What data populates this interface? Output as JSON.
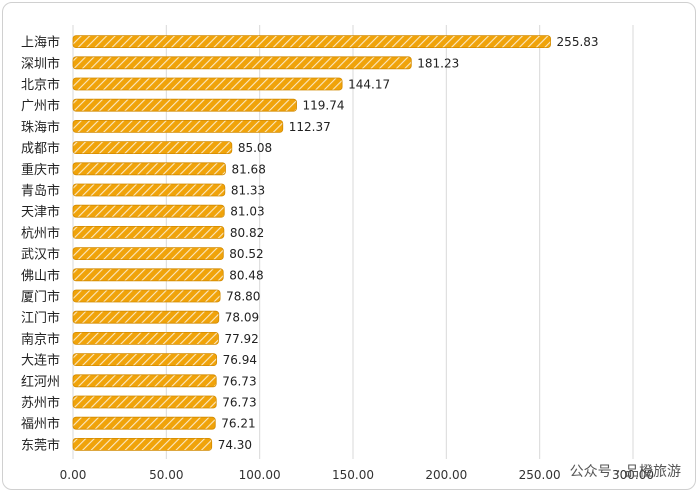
{
  "chart_data": {
    "type": "bar",
    "orientation": "horizontal",
    "categories": [
      "上海市",
      "深圳市",
      "北京市",
      "广州市",
      "珠海市",
      "成都市",
      "重庆市",
      "青岛市",
      "天津市",
      "杭州市",
      "武汉市",
      "佛山市",
      "厦门市",
      "江门市",
      "南京市",
      "大连市",
      "红河州",
      "苏州市",
      "福州市",
      "东莞市"
    ],
    "values": [
      255.83,
      181.23,
      144.17,
      119.74,
      112.37,
      85.08,
      81.68,
      81.33,
      81.03,
      80.82,
      80.52,
      80.48,
      78.8,
      78.09,
      77.92,
      76.94,
      76.73,
      76.73,
      76.21,
      74.3
    ],
    "value_labels": [
      "255.83",
      "181.23",
      "144.17",
      "119.74",
      "112.37",
      "85.08",
      "81.68",
      "81.33",
      "81.03",
      "80.82",
      "80.52",
      "80.48",
      "78.80",
      "78.09",
      "77.92",
      "76.94",
      "76.73",
      "76.73",
      "76.21",
      "74.30"
    ],
    "x_ticks": [
      "0.00",
      "50.00",
      "100.00",
      "150.00",
      "200.00",
      "250.00",
      "300.00"
    ],
    "xlim": [
      0,
      300
    ],
    "grid": "vertical",
    "bar_color": "#f0a30a"
  },
  "watermark": "公众号 · 品橙旅游"
}
